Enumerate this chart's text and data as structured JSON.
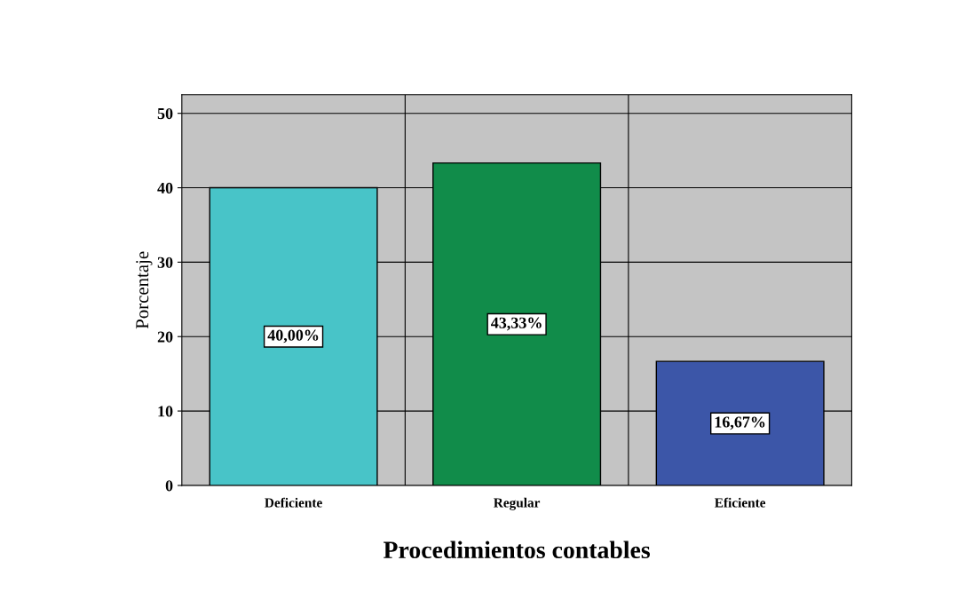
{
  "chart_data": {
    "type": "bar",
    "xlabel": "Procedimientos contables",
    "ylabel": "Porcentaje",
    "categories": [
      "Deficiente",
      "Regular",
      "Eficiente"
    ],
    "values": [
      40.0,
      43.33,
      16.67
    ],
    "colors": [
      "#48c4c8",
      "#118c4a",
      "#3c56a8"
    ],
    "value_labels": [
      "40,00%",
      "43,33%",
      "16,67%"
    ],
    "ylim": [
      0,
      52.5
    ],
    "yticks": [
      0,
      10,
      20,
      30,
      40,
      50
    ],
    "grid": true
  }
}
